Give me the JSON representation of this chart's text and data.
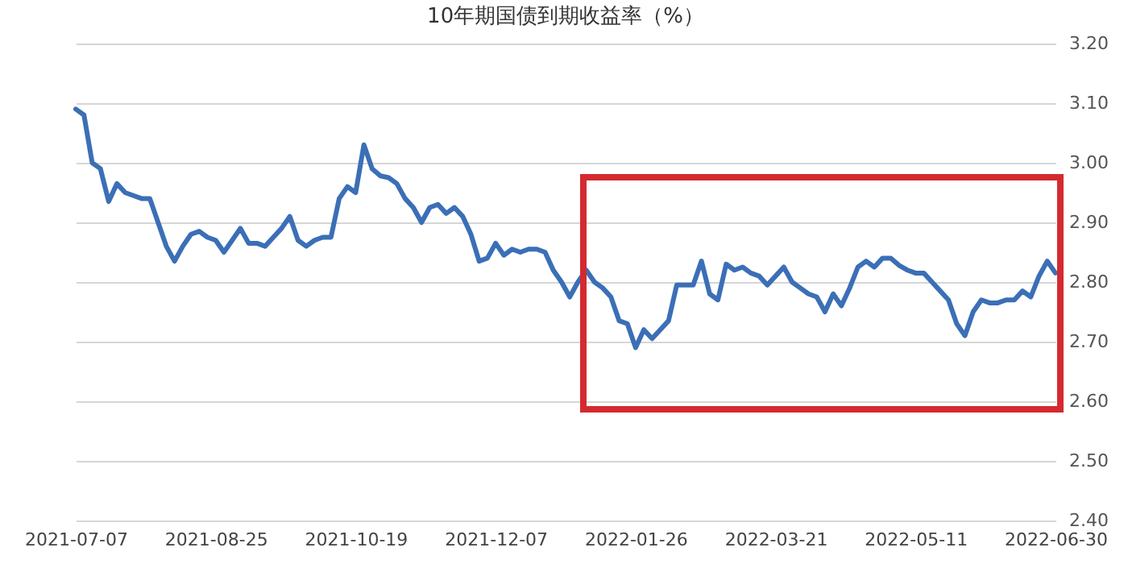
{
  "chart_data": {
    "type": "line",
    "title": "10年期国债到期收益率（%）",
    "categories": [
      "2021-07-07",
      null,
      null,
      null,
      null,
      null,
      null,
      null,
      null,
      null,
      null,
      null,
      null,
      null,
      null,
      null,
      null,
      "2021-08-25",
      null,
      null,
      null,
      null,
      null,
      null,
      null,
      null,
      null,
      null,
      null,
      null,
      null,
      null,
      null,
      null,
      "2021-10-19",
      null,
      null,
      null,
      null,
      null,
      null,
      null,
      null,
      null,
      null,
      null,
      null,
      null,
      null,
      null,
      null,
      "2021-12-07",
      null,
      null,
      null,
      null,
      null,
      null,
      null,
      null,
      null,
      null,
      null,
      null,
      null,
      null,
      null,
      null,
      "2022-01-26",
      null,
      null,
      null,
      null,
      null,
      null,
      null,
      null,
      null,
      null,
      null,
      null,
      null,
      null,
      null,
      null,
      "2022-03-21",
      null,
      null,
      null,
      null,
      null,
      null,
      null,
      null,
      null,
      null,
      null,
      null,
      null,
      null,
      null,
      null,
      "2022-05-11",
      null,
      null,
      null,
      null,
      null,
      null,
      null,
      null,
      null,
      null,
      null,
      null,
      null,
      null,
      null,
      null,
      "2022-06-30"
    ],
    "series": [
      {
        "color": "#3b6fb6",
        "values": [
          3.09,
          3.08,
          3.0,
          2.99,
          2.935,
          2.965,
          2.95,
          2.945,
          2.94,
          2.94,
          2.9,
          2.86,
          2.835,
          2.86,
          2.88,
          2.885,
          2.875,
          2.87,
          2.85,
          2.87,
          2.89,
          2.865,
          2.865,
          2.86,
          2.875,
          2.89,
          2.91,
          2.87,
          2.86,
          2.87,
          2.875,
          2.875,
          2.94,
          2.96,
          2.95,
          3.03,
          2.99,
          2.978,
          2.975,
          2.965,
          2.94,
          2.925,
          2.9,
          2.925,
          2.93,
          2.915,
          2.925,
          2.91,
          2.88,
          2.835,
          2.84,
          2.865,
          2.845,
          2.855,
          2.85,
          2.855,
          2.855,
          2.85,
          2.82,
          2.8,
          2.775,
          2.8,
          2.82,
          2.8,
          2.79,
          2.775,
          2.735,
          2.73,
          2.69,
          2.72,
          2.705,
          2.72,
          2.735,
          2.795,
          2.795,
          2.795,
          2.835,
          2.78,
          2.77,
          2.83,
          2.82,
          2.825,
          2.815,
          2.81,
          2.795,
          2.81,
          2.825,
          2.8,
          2.79,
          2.78,
          2.775,
          2.75,
          2.78,
          2.76,
          2.79,
          2.825,
          2.835,
          2.825,
          2.84,
          2.84,
          2.828,
          2.82,
          2.815,
          2.815,
          2.8,
          2.785,
          2.77,
          2.73,
          2.71,
          2.75,
          2.77,
          2.765,
          2.765,
          2.77,
          2.77,
          2.785,
          2.775,
          2.81,
          2.835,
          2.815
        ]
      }
    ],
    "ylim": [
      2.4,
      3.2
    ],
    "yticks": [
      {
        "value": 2.4,
        "label": "2.40"
      },
      {
        "value": 2.5,
        "label": "2.50"
      },
      {
        "value": 2.6,
        "label": "2.60"
      },
      {
        "value": 2.7,
        "label": "2.70"
      },
      {
        "value": 2.8,
        "label": "2.80"
      },
      {
        "value": 2.9,
        "label": "2.90"
      },
      {
        "value": 3.0,
        "label": "3.00"
      },
      {
        "value": 3.1,
        "label": "3.10"
      },
      {
        "value": 3.2,
        "label": "3.20"
      }
    ],
    "grid": "y"
  }
}
